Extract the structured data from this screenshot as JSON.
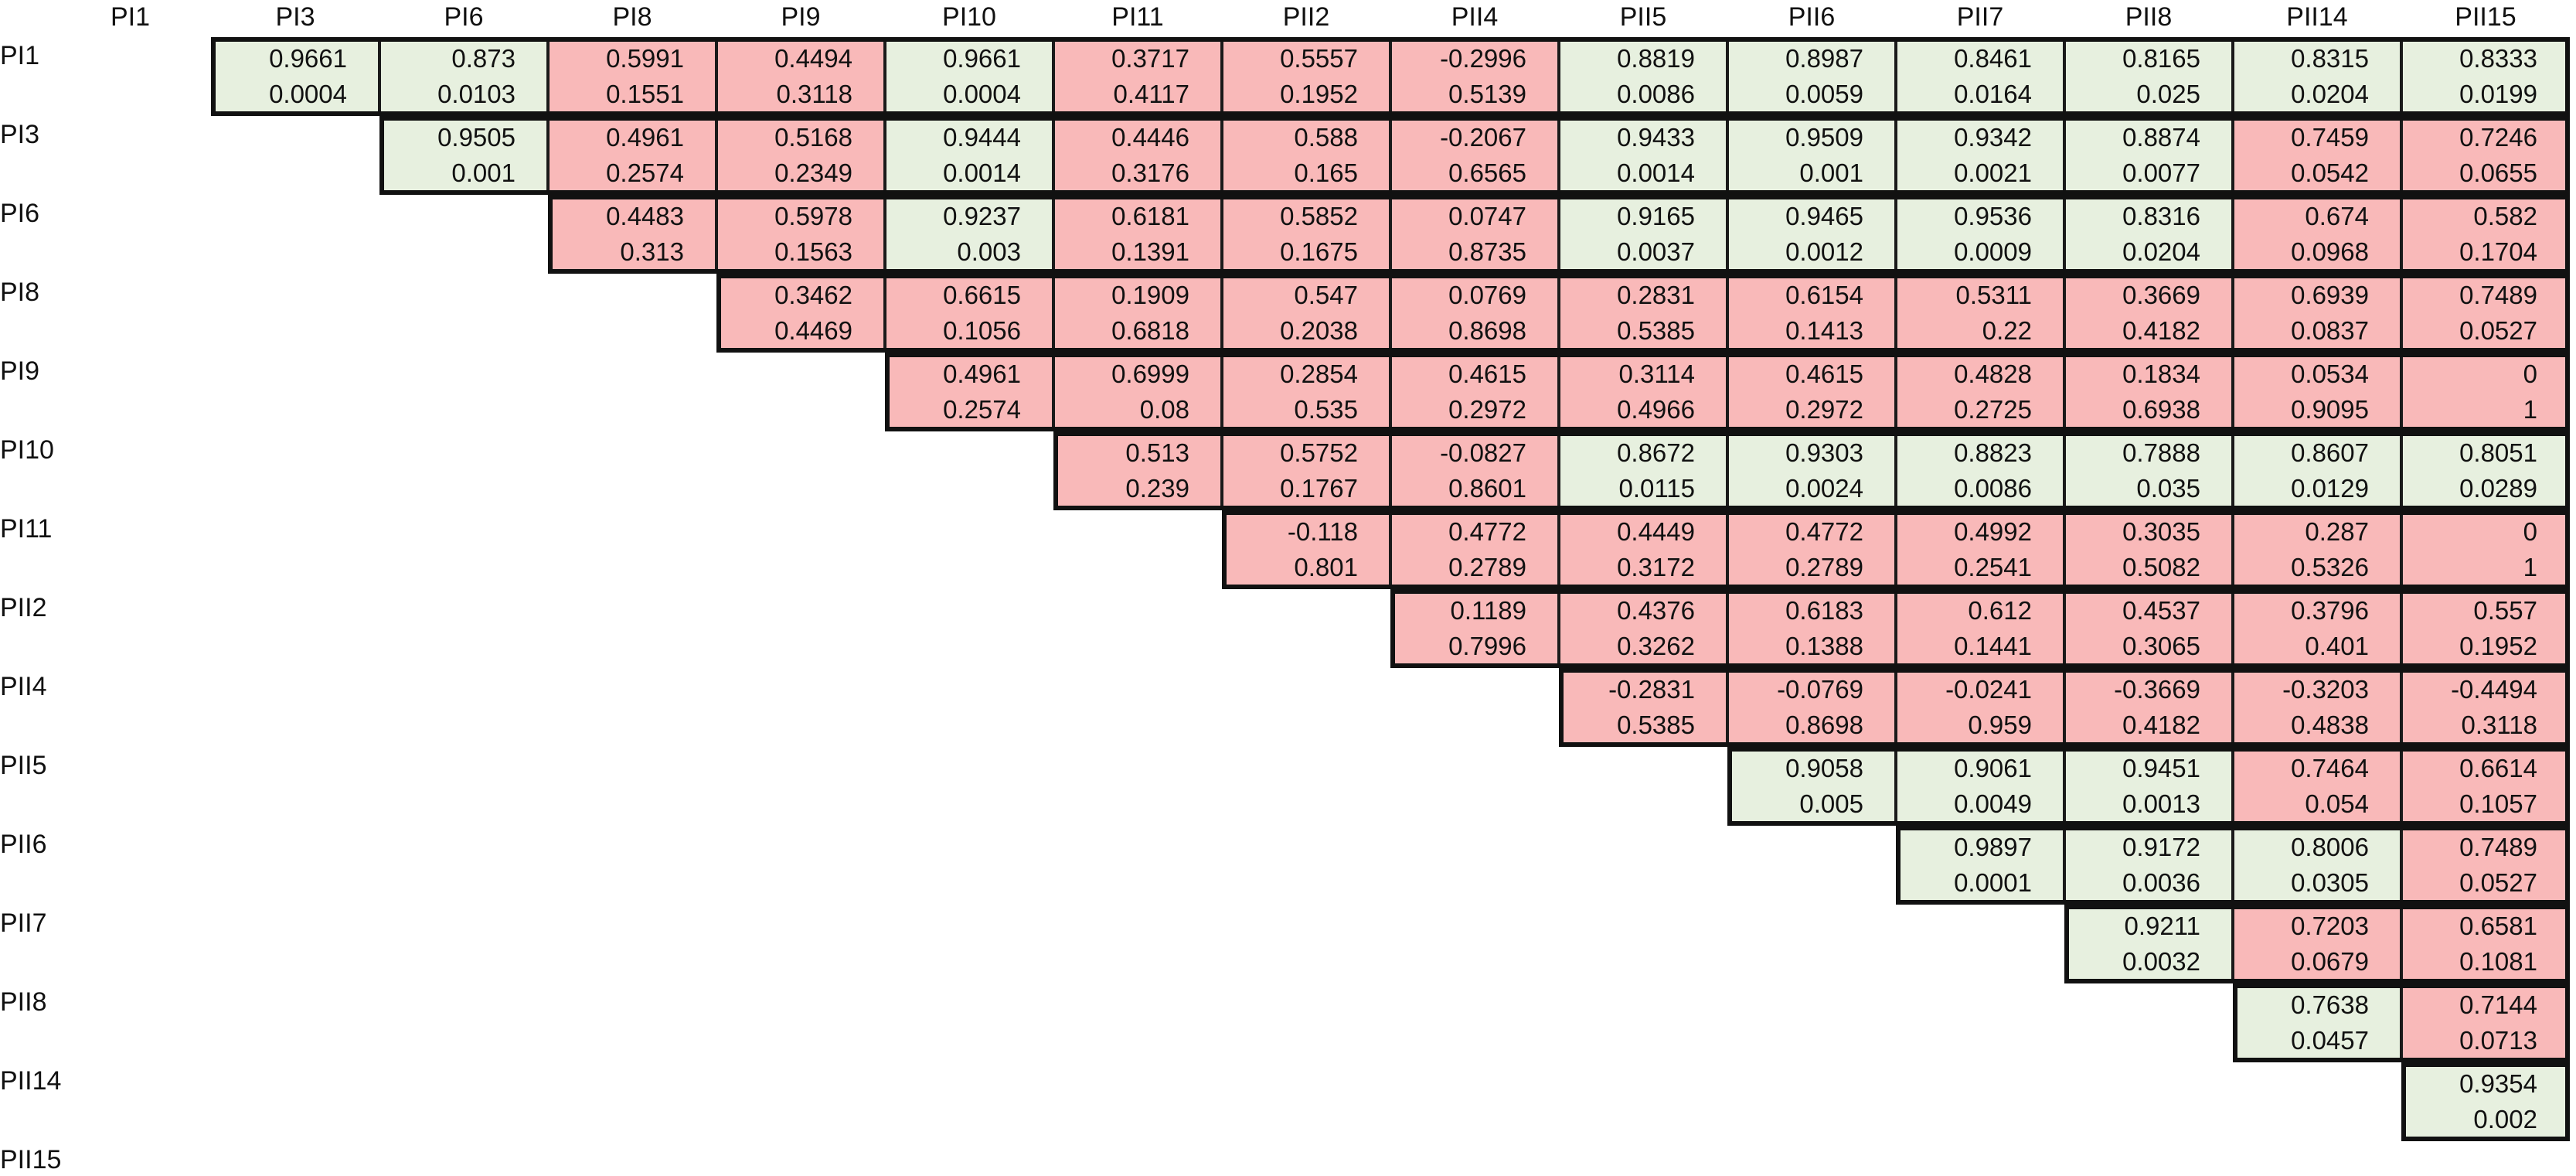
{
  "chart_data": {
    "type": "heatmap",
    "title": "",
    "labels": [
      "PI1",
      "PI3",
      "PI6",
      "PI8",
      "PI9",
      "PI10",
      "PI11",
      "PII2",
      "PII4",
      "PII5",
      "PII6",
      "PII7",
      "PII8",
      "PII14",
      "PII15"
    ],
    "colors": {
      "significant": "#e7f0df",
      "not_significant": "#f9b9b9",
      "border": "#111111"
    },
    "cells": [
      {
        "row": "PI1",
        "col": "PI3",
        "r": "0.9661",
        "p": "0.0004",
        "significant": true
      },
      {
        "row": "PI1",
        "col": "PI6",
        "r": "0.873",
        "p": "0.0103",
        "significant": true
      },
      {
        "row": "PI1",
        "col": "PI8",
        "r": "0.5991",
        "p": "0.1551",
        "significant": false
      },
      {
        "row": "PI1",
        "col": "PI9",
        "r": "0.4494",
        "p": "0.3118",
        "significant": false
      },
      {
        "row": "PI1",
        "col": "PI10",
        "r": "0.9661",
        "p": "0.0004",
        "significant": true
      },
      {
        "row": "PI1",
        "col": "PI11",
        "r": "0.3717",
        "p": "0.4117",
        "significant": false
      },
      {
        "row": "PI1",
        "col": "PII2",
        "r": "0.5557",
        "p": "0.1952",
        "significant": false
      },
      {
        "row": "PI1",
        "col": "PII4",
        "r": "-0.2996",
        "p": "0.5139",
        "significant": false
      },
      {
        "row": "PI1",
        "col": "PII5",
        "r": "0.8819",
        "p": "0.0086",
        "significant": true
      },
      {
        "row": "PI1",
        "col": "PII6",
        "r": "0.8987",
        "p": "0.0059",
        "significant": true
      },
      {
        "row": "PI1",
        "col": "PII7",
        "r": "0.8461",
        "p": "0.0164",
        "significant": true
      },
      {
        "row": "PI1",
        "col": "PII8",
        "r": "0.8165",
        "p": "0.025",
        "significant": true
      },
      {
        "row": "PI1",
        "col": "PII14",
        "r": "0.8315",
        "p": "0.0204",
        "significant": true
      },
      {
        "row": "PI1",
        "col": "PII15",
        "r": "0.8333",
        "p": "0.0199",
        "significant": true
      },
      {
        "row": "PI3",
        "col": "PI6",
        "r": "0.9505",
        "p": "0.001",
        "significant": true
      },
      {
        "row": "PI3",
        "col": "PI8",
        "r": "0.4961",
        "p": "0.2574",
        "significant": false
      },
      {
        "row": "PI3",
        "col": "PI9",
        "r": "0.5168",
        "p": "0.2349",
        "significant": false
      },
      {
        "row": "PI3",
        "col": "PI10",
        "r": "0.9444",
        "p": "0.0014",
        "significant": true
      },
      {
        "row": "PI3",
        "col": "PI11",
        "r": "0.4446",
        "p": "0.3176",
        "significant": false
      },
      {
        "row": "PI3",
        "col": "PII2",
        "r": "0.588",
        "p": "0.165",
        "significant": false
      },
      {
        "row": "PI3",
        "col": "PII4",
        "r": "-0.2067",
        "p": "0.6565",
        "significant": false
      },
      {
        "row": "PI3",
        "col": "PII5",
        "r": "0.9433",
        "p": "0.0014",
        "significant": true
      },
      {
        "row": "PI3",
        "col": "PII6",
        "r": "0.9509",
        "p": "0.001",
        "significant": true
      },
      {
        "row": "PI3",
        "col": "PII7",
        "r": "0.9342",
        "p": "0.0021",
        "significant": true
      },
      {
        "row": "PI3",
        "col": "PII8",
        "r": "0.8874",
        "p": "0.0077",
        "significant": true
      },
      {
        "row": "PI3",
        "col": "PII14",
        "r": "0.7459",
        "p": "0.0542",
        "significant": false
      },
      {
        "row": "PI3",
        "col": "PII15",
        "r": "0.7246",
        "p": "0.0655",
        "significant": false
      },
      {
        "row": "PI6",
        "col": "PI8",
        "r": "0.4483",
        "p": "0.313",
        "significant": false
      },
      {
        "row": "PI6",
        "col": "PI9",
        "r": "0.5978",
        "p": "0.1563",
        "significant": false
      },
      {
        "row": "PI6",
        "col": "PI10",
        "r": "0.9237",
        "p": "0.003",
        "significant": true
      },
      {
        "row": "PI6",
        "col": "PI11",
        "r": "0.6181",
        "p": "0.1391",
        "significant": false
      },
      {
        "row": "PI6",
        "col": "PII2",
        "r": "0.5852",
        "p": "0.1675",
        "significant": false
      },
      {
        "row": "PI6",
        "col": "PII4",
        "r": "0.0747",
        "p": "0.8735",
        "significant": false
      },
      {
        "row": "PI6",
        "col": "PII5",
        "r": "0.9165",
        "p": "0.0037",
        "significant": true
      },
      {
        "row": "PI6",
        "col": "PII6",
        "r": "0.9465",
        "p": "0.0012",
        "significant": true
      },
      {
        "row": "PI6",
        "col": "PII7",
        "r": "0.9536",
        "p": "0.0009",
        "significant": true
      },
      {
        "row": "PI6",
        "col": "PII8",
        "r": "0.8316",
        "p": "0.0204",
        "significant": true
      },
      {
        "row": "PI6",
        "col": "PII14",
        "r": "0.674",
        "p": "0.0968",
        "significant": false
      },
      {
        "row": "PI6",
        "col": "PII15",
        "r": "0.582",
        "p": "0.1704",
        "significant": false
      },
      {
        "row": "PI8",
        "col": "PI9",
        "r": "0.3462",
        "p": "0.4469",
        "significant": false
      },
      {
        "row": "PI8",
        "col": "PI10",
        "r": "0.6615",
        "p": "0.1056",
        "significant": false
      },
      {
        "row": "PI8",
        "col": "PI11",
        "r": "0.1909",
        "p": "0.6818",
        "significant": false
      },
      {
        "row": "PI8",
        "col": "PII2",
        "r": "0.547",
        "p": "0.2038",
        "significant": false
      },
      {
        "row": "PI8",
        "col": "PII4",
        "r": "0.0769",
        "p": "0.8698",
        "significant": false
      },
      {
        "row": "PI8",
        "col": "PII5",
        "r": "0.2831",
        "p": "0.5385",
        "significant": false
      },
      {
        "row": "PI8",
        "col": "PII6",
        "r": "0.6154",
        "p": "0.1413",
        "significant": false
      },
      {
        "row": "PI8",
        "col": "PII7",
        "r": "0.5311",
        "p": "0.22",
        "significant": false
      },
      {
        "row": "PI8",
        "col": "PII8",
        "r": "0.3669",
        "p": "0.4182",
        "significant": false
      },
      {
        "row": "PI8",
        "col": "PII14",
        "r": "0.6939",
        "p": "0.0837",
        "significant": false
      },
      {
        "row": "PI8",
        "col": "PII15",
        "r": "0.7489",
        "p": "0.0527",
        "significant": false
      },
      {
        "row": "PI9",
        "col": "PI10",
        "r": "0.4961",
        "p": "0.2574",
        "significant": false
      },
      {
        "row": "PI9",
        "col": "PI11",
        "r": "0.6999",
        "p": "0.08",
        "significant": false
      },
      {
        "row": "PI9",
        "col": "PII2",
        "r": "0.2854",
        "p": "0.535",
        "significant": false
      },
      {
        "row": "PI9",
        "col": "PII4",
        "r": "0.4615",
        "p": "0.2972",
        "significant": false
      },
      {
        "row": "PI9",
        "col": "PII5",
        "r": "0.3114",
        "p": "0.4966",
        "significant": false
      },
      {
        "row": "PI9",
        "col": "PII6",
        "r": "0.4615",
        "p": "0.2972",
        "significant": false
      },
      {
        "row": "PI9",
        "col": "PII7",
        "r": "0.4828",
        "p": "0.2725",
        "significant": false
      },
      {
        "row": "PI9",
        "col": "PII8",
        "r": "0.1834",
        "p": "0.6938",
        "significant": false
      },
      {
        "row": "PI9",
        "col": "PII14",
        "r": "0.0534",
        "p": "0.9095",
        "significant": false
      },
      {
        "row": "PI9",
        "col": "PII15",
        "r": "0",
        "p": "1",
        "significant": false
      },
      {
        "row": "PI10",
        "col": "PI11",
        "r": "0.513",
        "p": "0.239",
        "significant": false
      },
      {
        "row": "PI10",
        "col": "PII2",
        "r": "0.5752",
        "p": "0.1767",
        "significant": false
      },
      {
        "row": "PI10",
        "col": "PII4",
        "r": "-0.0827",
        "p": "0.8601",
        "significant": false
      },
      {
        "row": "PI10",
        "col": "PII5",
        "r": "0.8672",
        "p": "0.0115",
        "significant": true
      },
      {
        "row": "PI10",
        "col": "PII6",
        "r": "0.9303",
        "p": "0.0024",
        "significant": true
      },
      {
        "row": "PI10",
        "col": "PII7",
        "r": "0.8823",
        "p": "0.0086",
        "significant": true
      },
      {
        "row": "PI10",
        "col": "PII8",
        "r": "0.7888",
        "p": "0.035",
        "significant": true
      },
      {
        "row": "PI10",
        "col": "PII14",
        "r": "0.8607",
        "p": "0.0129",
        "significant": true
      },
      {
        "row": "PI10",
        "col": "PII15",
        "r": "0.8051",
        "p": "0.0289",
        "significant": true
      },
      {
        "row": "PI11",
        "col": "PII2",
        "r": "-0.118",
        "p": "0.801",
        "significant": false
      },
      {
        "row": "PI11",
        "col": "PII4",
        "r": "0.4772",
        "p": "0.2789",
        "significant": false
      },
      {
        "row": "PI11",
        "col": "PII5",
        "r": "0.4449",
        "p": "0.3172",
        "significant": false
      },
      {
        "row": "PI11",
        "col": "PII6",
        "r": "0.4772",
        "p": "0.2789",
        "significant": false
      },
      {
        "row": "PI11",
        "col": "PII7",
        "r": "0.4992",
        "p": "0.2541",
        "significant": false
      },
      {
        "row": "PI11",
        "col": "PII8",
        "r": "0.3035",
        "p": "0.5082",
        "significant": false
      },
      {
        "row": "PI11",
        "col": "PII14",
        "r": "0.287",
        "p": "0.5326",
        "significant": false
      },
      {
        "row": "PI11",
        "col": "PII15",
        "r": "0",
        "p": "1",
        "significant": false
      },
      {
        "row": "PII2",
        "col": "PII4",
        "r": "0.1189",
        "p": "0.7996",
        "significant": false
      },
      {
        "row": "PII2",
        "col": "PII5",
        "r": "0.4376",
        "p": "0.3262",
        "significant": false
      },
      {
        "row": "PII2",
        "col": "PII6",
        "r": "0.6183",
        "p": "0.1388",
        "significant": false
      },
      {
        "row": "PII2",
        "col": "PII7",
        "r": "0.612",
        "p": "0.1441",
        "significant": false
      },
      {
        "row": "PII2",
        "col": "PII8",
        "r": "0.4537",
        "p": "0.3065",
        "significant": false
      },
      {
        "row": "PII2",
        "col": "PII14",
        "r": "0.3796",
        "p": "0.401",
        "significant": false
      },
      {
        "row": "PII2",
        "col": "PII15",
        "r": "0.557",
        "p": "0.1952",
        "significant": false
      },
      {
        "row": "PII4",
        "col": "PII5",
        "r": "-0.2831",
        "p": "0.5385",
        "significant": false
      },
      {
        "row": "PII4",
        "col": "PII6",
        "r": "-0.0769",
        "p": "0.8698",
        "significant": false
      },
      {
        "row": "PII4",
        "col": "PII7",
        "r": "-0.0241",
        "p": "0.959",
        "significant": false
      },
      {
        "row": "PII4",
        "col": "PII8",
        "r": "-0.3669",
        "p": "0.4182",
        "significant": false
      },
      {
        "row": "PII4",
        "col": "PII14",
        "r": "-0.3203",
        "p": "0.4838",
        "significant": false
      },
      {
        "row": "PII4",
        "col": "PII15",
        "r": "-0.4494",
        "p": "0.3118",
        "significant": false
      },
      {
        "row": "PII5",
        "col": "PII6",
        "r": "0.9058",
        "p": "0.005",
        "significant": true
      },
      {
        "row": "PII5",
        "col": "PII7",
        "r": "0.9061",
        "p": "0.0049",
        "significant": true
      },
      {
        "row": "PII5",
        "col": "PII8",
        "r": "0.9451",
        "p": "0.0013",
        "significant": true
      },
      {
        "row": "PII5",
        "col": "PII14",
        "r": "0.7464",
        "p": "0.054",
        "significant": false
      },
      {
        "row": "PII5",
        "col": "PII15",
        "r": "0.6614",
        "p": "0.1057",
        "significant": false
      },
      {
        "row": "PII6",
        "col": "PII7",
        "r": "0.9897",
        "p": "0.0001",
        "significant": true
      },
      {
        "row": "PII6",
        "col": "PII8",
        "r": "0.9172",
        "p": "0.0036",
        "significant": true
      },
      {
        "row": "PII6",
        "col": "PII14",
        "r": "0.8006",
        "p": "0.0305",
        "significant": true
      },
      {
        "row": "PII6",
        "col": "PII15",
        "r": "0.7489",
        "p": "0.0527",
        "significant": false
      },
      {
        "row": "PII7",
        "col": "PII8",
        "r": "0.9211",
        "p": "0.0032",
        "significant": true
      },
      {
        "row": "PII7",
        "col": "PII14",
        "r": "0.7203",
        "p": "0.0679",
        "significant": false
      },
      {
        "row": "PII7",
        "col": "PII15",
        "r": "0.6581",
        "p": "0.1081",
        "significant": false
      },
      {
        "row": "PII8",
        "col": "PII14",
        "r": "0.7638",
        "p": "0.0457",
        "significant": true
      },
      {
        "row": "PII8",
        "col": "PII15",
        "r": "0.7144",
        "p": "0.0713",
        "significant": false
      },
      {
        "row": "PII14",
        "col": "PII15",
        "r": "0.9354",
        "p": "0.002",
        "significant": true
      }
    ]
  }
}
